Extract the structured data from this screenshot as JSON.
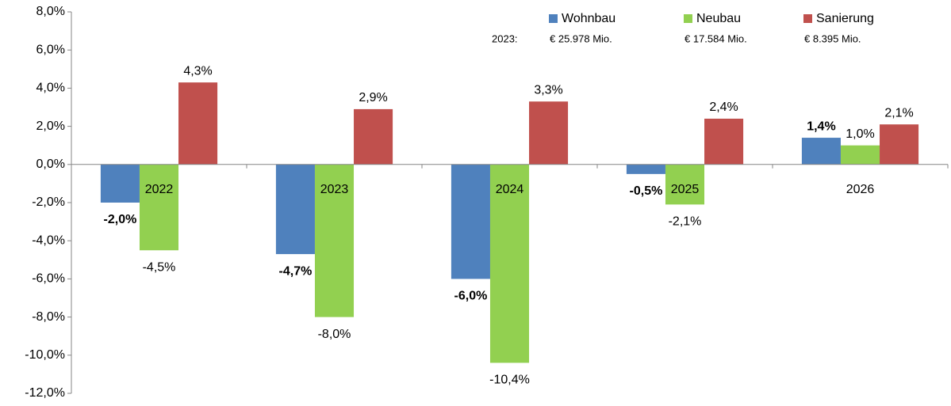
{
  "chart_data": {
    "type": "bar",
    "categories": [
      "2022",
      "2023",
      "2024",
      "2025",
      "2026"
    ],
    "series": [
      {
        "name": "Wohnbau",
        "color": "#4f81bd",
        "note": "€ 25.978 Mio.",
        "bold_labels": true,
        "values": [
          -2.0,
          -4.7,
          -6.0,
          -0.5,
          1.4
        ],
        "value_labels": [
          "-2,0%",
          "-4,7%",
          "-6,0%",
          "-0,5%",
          "1,4%"
        ]
      },
      {
        "name": "Neubau",
        "color": "#92d050",
        "note": "€ 17.584 Mio.",
        "bold_labels": false,
        "values": [
          -4.5,
          -8.0,
          -10.4,
          -2.1,
          1.0
        ],
        "value_labels": [
          "-4,5%",
          "-8,0%",
          "-10,4%",
          "-2,1%",
          "1,0%"
        ]
      },
      {
        "name": "Sanierung",
        "color": "#c0504d",
        "note": "€ 8.395 Mio.",
        "bold_labels": false,
        "values": [
          4.3,
          2.9,
          3.3,
          2.4,
          2.1
        ],
        "value_labels": [
          "4,3%",
          "2,9%",
          "3,3%",
          "2,4%",
          "2,1%"
        ]
      }
    ],
    "legend_note": "2023:",
    "ylim": [
      -12,
      8
    ],
    "yticks": [
      {
        "value": -12,
        "label": "-12,0%"
      },
      {
        "value": -10,
        "label": "-10,0%"
      },
      {
        "value": -8,
        "label": "-8,0%"
      },
      {
        "value": -6,
        "label": "-6,0%"
      },
      {
        "value": -4,
        "label": "-4,0%"
      },
      {
        "value": -2,
        "label": "-2,0%"
      },
      {
        "value": 0,
        "label": "0,0%"
      },
      {
        "value": 2,
        "label": "2,0%"
      },
      {
        "value": 4,
        "label": "4,0%"
      },
      {
        "value": 6,
        "label": "6,0%"
      },
      {
        "value": 8,
        "label": "8,0%"
      }
    ],
    "grid": false,
    "legend": "top-right"
  }
}
